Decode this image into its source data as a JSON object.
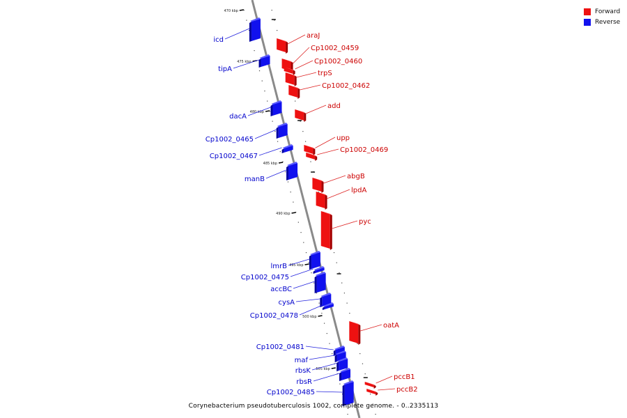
{
  "legend": [
    {
      "label": "Forward",
      "color": "#ee1111"
    },
    {
      "label": "Reverse",
      "color": "#1111ee"
    }
  ],
  "caption": "Corynebacterium pseudotuberculosis 1002, complete genome. - 0..2335113",
  "ticks": [
    "470 kbp",
    "475 kbp",
    "480 kbp",
    "485 kbp",
    "490 kbp",
    "495 kbp",
    "500 kbp",
    "505 kbp"
  ],
  "genes_forward": [
    "araJ",
    "Cp1002_0459",
    "Cp1002_0460",
    "trpS",
    "Cp1002_0462",
    "add",
    "upp",
    "Cp1002_0469",
    "abgB",
    "lpdA",
    "pyc",
    "oatA",
    "pccB1",
    "pccB2"
  ],
  "genes_reverse": [
    "icd",
    "tipA",
    "dacA",
    "Cp1002_0465",
    "Cp1002_0467",
    "manB",
    "lmrB",
    "Cp1002_0475",
    "accBC",
    "cysA",
    "Cp1002_0478",
    "Cp1002_0481",
    "maf",
    "rbsK",
    "rbsR",
    "Cp1002_0485"
  ]
}
